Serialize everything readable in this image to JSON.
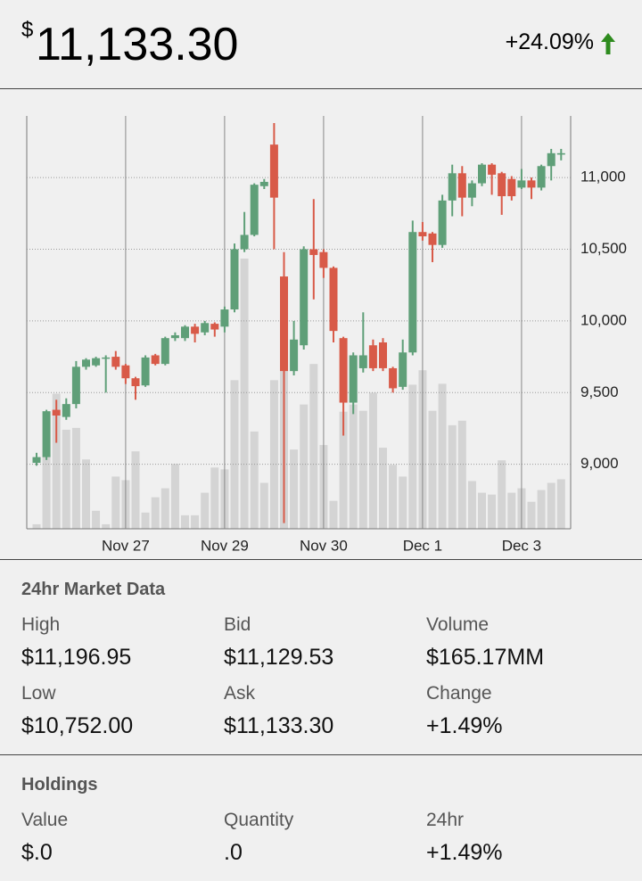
{
  "header": {
    "currency_symbol": "$",
    "price": "11,133.30",
    "change": "+24.09%"
  },
  "chart_data": {
    "type": "candlestick",
    "categories": [
      null,
      null,
      null,
      null,
      null,
      null,
      null,
      null,
      null,
      "Nov 27",
      null,
      null,
      null,
      null,
      null,
      null,
      null,
      null,
      null,
      "Nov 29",
      null,
      null,
      null,
      null,
      null,
      null,
      null,
      null,
      null,
      "Nov 30",
      null,
      null,
      null,
      null,
      null,
      null,
      null,
      null,
      null,
      "Dec 1",
      null,
      null,
      null,
      null,
      null,
      null,
      null,
      null,
      null,
      "Dec 3",
      null,
      null,
      null,
      null
    ],
    "open": [
      9010,
      9050,
      9380,
      9330,
      9420,
      9680,
      9690,
      9740,
      9750,
      9690,
      9600,
      9550,
      9760,
      9700,
      9880,
      9880,
      9960,
      9920,
      9980,
      9960,
      10080,
      10500,
      10600,
      10940,
      11230,
      10310,
      9650,
      9830,
      10500,
      10480,
      10370,
      9880,
      9430,
      9670,
      9830,
      9850,
      9670,
      9540,
      9780,
      10620,
      10610,
      10530,
      10840,
      11030,
      10860,
      10960,
      11090,
      11030,
      10990,
      10930,
      10980,
      10930,
      11080,
      11160
    ],
    "high": [
      9080,
      9380,
      9450,
      9460,
      9720,
      9740,
      9750,
      9760,
      9790,
      9700,
      9610,
      9760,
      9770,
      9890,
      9920,
      9970,
      9980,
      10000,
      9990,
      10100,
      10540,
      10760,
      10960,
      10990,
      11380,
      10480,
      10000,
      10520,
      10850,
      10500,
      10380,
      9890,
      9780,
      10060,
      9870,
      9880,
      9680,
      9870,
      10700,
      10690,
      10620,
      10880,
      11090,
      11080,
      10980,
      11100,
      11100,
      11040,
      11010,
      11060,
      11000,
      11090,
      11200,
      11200
    ],
    "low": [
      8990,
      9030,
      9150,
      9310,
      9390,
      9660,
      9680,
      9500,
      9660,
      9560,
      9450,
      9540,
      9690,
      9690,
      9860,
      9860,
      9850,
      9900,
      9890,
      9920,
      10060,
      10480,
      10590,
      10920,
      10500,
      8590,
      9620,
      9800,
      10150,
      10300,
      9850,
      9200,
      9350,
      9640,
      9650,
      9650,
      9500,
      9520,
      9760,
      10560,
      10410,
      10510,
      10730,
      10730,
      10800,
      10940,
      10880,
      10740,
      10840,
      10920,
      10850,
      10910,
      10980,
      11120
    ],
    "close": [
      9050,
      9370,
      9340,
      9420,
      9680,
      9730,
      9740,
      9745,
      9680,
      9600,
      9545,
      9745,
      9700,
      9880,
      9900,
      9960,
      9910,
      9985,
      9940,
      10080,
      10500,
      10600,
      10950,
      10970,
      10860,
      9650,
      9870,
      10500,
      10460,
      10370,
      9930,
      9430,
      9760,
      9760,
      9670,
      9670,
      9530,
      9780,
      10620,
      10590,
      10530,
      10840,
      11030,
      10860,
      10960,
      11090,
      11020,
      10870,
      10870,
      10980,
      10930,
      11080,
      11170,
      11170
    ],
    "volume": [
      5,
      82,
      150,
      110,
      112,
      77,
      20,
      5,
      58,
      54,
      86,
      18,
      35,
      45,
      72,
      15,
      15,
      40,
      68,
      66,
      165,
      300,
      108,
      51,
      165,
      175,
      88,
      138,
      183,
      93,
      31,
      130,
      138,
      131,
      151,
      90,
      71,
      58,
      160,
      176,
      131,
      161,
      115,
      120,
      53,
      40,
      38,
      76,
      40,
      45,
      30,
      43,
      51,
      55
    ],
    "up_color": "#5f9f78",
    "down_color": "#d85a48",
    "volume_color": "#d4d4d4",
    "ylim": [
      8550,
      11430
    ],
    "yticks": [
      {
        "value": 9000,
        "label": "9,000"
      },
      {
        "value": 9500,
        "label": "9,500"
      },
      {
        "value": 10000,
        "label": "10,000"
      },
      {
        "value": 10500,
        "label": "10,500"
      },
      {
        "value": 11000,
        "label": "11,000"
      }
    ],
    "grid": true
  },
  "market": {
    "title": "24hr Market Data",
    "items": [
      {
        "label": "High",
        "value": "$11,196.95"
      },
      {
        "label": "Bid",
        "value": "$11,129.53"
      },
      {
        "label": "Volume",
        "value": "$165.17MM"
      },
      {
        "label": "Low",
        "value": "$10,752.00"
      },
      {
        "label": "Ask",
        "value": "$11,133.30"
      },
      {
        "label": "Change",
        "value": "+1.49%"
      }
    ]
  },
  "holdings": {
    "title": "Holdings",
    "items": [
      {
        "label": "Value",
        "value": "$.0"
      },
      {
        "label": "Quantity",
        "value": ".0"
      },
      {
        "label": "24hr",
        "value": "+1.49%"
      }
    ]
  }
}
